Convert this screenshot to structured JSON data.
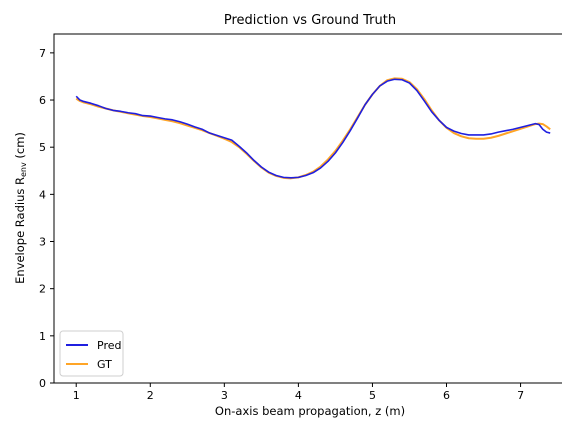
{
  "chart_data": {
    "type": "line",
    "title": "Prediction vs Ground Truth",
    "xlabel": "On-axis beam propagation, z (m)",
    "ylabel_main": "Envelope Radius R",
    "ylabel_sub": "env",
    "ylabel_unit": " (cm)",
    "xlim": [
      0.7,
      7.6
    ],
    "ylim": [
      0,
      7.4
    ],
    "xticks": [
      1,
      2,
      3,
      4,
      5,
      6,
      7
    ],
    "yticks": [
      0,
      1,
      2,
      3,
      4,
      5,
      6,
      7
    ],
    "grid": false,
    "legend_position": "lower-left",
    "series": [
      {
        "name": "Pred",
        "color": "#1f1fe0",
        "x": [
          1.0,
          1.05,
          1.1,
          1.2,
          1.3,
          1.4,
          1.5,
          1.6,
          1.7,
          1.8,
          1.9,
          2.0,
          2.1,
          2.2,
          2.3,
          2.4,
          2.5,
          2.6,
          2.7,
          2.8,
          2.9,
          3.0,
          3.1,
          3.2,
          3.3,
          3.4,
          3.5,
          3.6,
          3.7,
          3.8,
          3.9,
          4.0,
          4.1,
          4.2,
          4.3,
          4.4,
          4.5,
          4.6,
          4.7,
          4.8,
          4.9,
          5.0,
          5.1,
          5.2,
          5.3,
          5.4,
          5.5,
          5.6,
          5.7,
          5.8,
          5.9,
          6.0,
          6.1,
          6.2,
          6.3,
          6.4,
          6.5,
          6.6,
          6.7,
          6.8,
          6.9,
          7.0,
          7.1,
          7.2,
          7.25,
          7.3,
          7.35,
          7.4
        ],
        "y": [
          6.08,
          6.0,
          5.97,
          5.93,
          5.88,
          5.82,
          5.78,
          5.76,
          5.73,
          5.71,
          5.67,
          5.66,
          5.63,
          5.6,
          5.58,
          5.54,
          5.49,
          5.43,
          5.38,
          5.3,
          5.25,
          5.2,
          5.15,
          5.02,
          4.88,
          4.72,
          4.58,
          4.47,
          4.4,
          4.36,
          4.35,
          4.36,
          4.4,
          4.46,
          4.56,
          4.7,
          4.88,
          5.1,
          5.35,
          5.62,
          5.9,
          6.12,
          6.3,
          6.4,
          6.44,
          6.43,
          6.36,
          6.2,
          5.98,
          5.75,
          5.57,
          5.42,
          5.34,
          5.29,
          5.26,
          5.26,
          5.26,
          5.28,
          5.32,
          5.35,
          5.38,
          5.42,
          5.46,
          5.5,
          5.48,
          5.38,
          5.32,
          5.3
        ]
      },
      {
        "name": "GT",
        "color": "#ffa526",
        "x": [
          1.0,
          1.05,
          1.1,
          1.2,
          1.3,
          1.4,
          1.5,
          1.6,
          1.7,
          1.8,
          1.9,
          2.0,
          2.1,
          2.2,
          2.3,
          2.4,
          2.5,
          2.6,
          2.7,
          2.8,
          2.9,
          3.0,
          3.1,
          3.2,
          3.3,
          3.4,
          3.5,
          3.6,
          3.7,
          3.8,
          3.9,
          4.0,
          4.1,
          4.2,
          4.3,
          4.4,
          4.5,
          4.6,
          4.7,
          4.8,
          4.9,
          5.0,
          5.1,
          5.2,
          5.3,
          5.4,
          5.5,
          5.6,
          5.7,
          5.8,
          5.9,
          6.0,
          6.1,
          6.2,
          6.3,
          6.4,
          6.5,
          6.6,
          6.7,
          6.8,
          6.9,
          7.0,
          7.1,
          7.2,
          7.25,
          7.3,
          7.35,
          7.4
        ],
        "y": [
          6.03,
          5.98,
          5.95,
          5.91,
          5.86,
          5.82,
          5.78,
          5.75,
          5.72,
          5.69,
          5.66,
          5.64,
          5.61,
          5.58,
          5.55,
          5.51,
          5.46,
          5.41,
          5.36,
          5.3,
          5.24,
          5.18,
          5.11,
          5.0,
          4.86,
          4.71,
          4.57,
          4.46,
          4.39,
          4.35,
          4.34,
          4.36,
          4.41,
          4.48,
          4.59,
          4.74,
          4.92,
          5.14,
          5.38,
          5.64,
          5.9,
          6.12,
          6.3,
          6.42,
          6.46,
          6.45,
          6.38,
          6.23,
          6.02,
          5.78,
          5.57,
          5.41,
          5.3,
          5.23,
          5.19,
          5.18,
          5.18,
          5.2,
          5.24,
          5.29,
          5.34,
          5.39,
          5.44,
          5.49,
          5.5,
          5.49,
          5.44,
          5.38
        ]
      }
    ]
  }
}
